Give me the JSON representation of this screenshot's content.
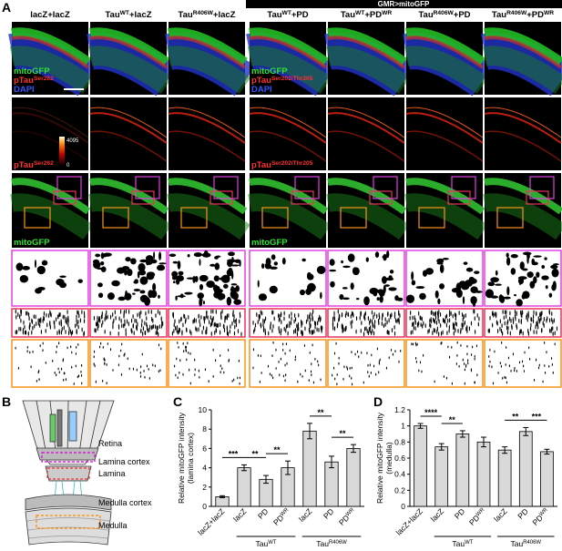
{
  "panel_a": {
    "letter": "A",
    "banner": "GMR>mitoGFP",
    "columns": [
      [
        {
          "text": "lacZ+lacZ"
        }
      ],
      [
        {
          "text": "Tau"
        },
        {
          "text": "WT",
          "sup": true
        },
        {
          "text": "+lacZ"
        }
      ],
      [
        {
          "text": "Tau"
        },
        {
          "text": "R406W",
          "sup": true
        },
        {
          "text": "+lacZ"
        }
      ],
      [
        {
          "text": "Tau"
        },
        {
          "text": "WT",
          "sup": true
        },
        {
          "text": "+PD"
        }
      ],
      [
        {
          "text": "Tau"
        },
        {
          "text": "WT",
          "sup": true
        },
        {
          "text": "+PD"
        },
        {
          "text": "WR",
          "sup": true
        }
      ],
      [
        {
          "text": "Tau"
        },
        {
          "text": "R406W",
          "sup": true
        },
        {
          "text": "+PD"
        }
      ],
      [
        {
          "text": "Tau"
        },
        {
          "text": "R406W",
          "sup": true
        },
        {
          "text": "+PD"
        },
        {
          "text": "WR",
          "sup": true
        }
      ]
    ],
    "overlays": [
      {
        "column": 0,
        "row": 0,
        "lines": [
          {
            "color": "#33e633",
            "text": [
              {
                "text": "mitoGFP"
              }
            ]
          },
          {
            "color": "#ff3030",
            "text": [
              {
                "text": "pTau"
              },
              {
                "text": "Ser262",
                "sup": true
              }
            ]
          },
          {
            "color": "#3355ff",
            "text": [
              {
                "text": "DAPI"
              }
            ]
          }
        ]
      },
      {
        "column": 3,
        "row": 0,
        "lines": [
          {
            "color": "#33e633",
            "text": [
              {
                "text": "mitoGFP"
              }
            ]
          },
          {
            "color": "#ff3030",
            "text": [
              {
                "text": "pTau"
              },
              {
                "text": "Ser202/Thr205",
                "sup": true
              }
            ]
          },
          {
            "color": "#3355ff",
            "text": [
              {
                "text": "DAPI"
              }
            ]
          }
        ]
      },
      {
        "column": 0,
        "row": 1,
        "lines": [
          {
            "color": "#ff3030",
            "text": [
              {
                "text": "pTau"
              },
              {
                "text": "Ser262",
                "sup": true
              }
            ]
          }
        ]
      },
      {
        "column": 3,
        "row": 1,
        "lines": [
          {
            "color": "#ff3030",
            "text": [
              {
                "text": "pTau"
              },
              {
                "text": "Ser202/Thr205",
                "sup": true
              }
            ]
          }
        ]
      },
      {
        "column": 0,
        "row": 2,
        "lines": [
          {
            "color": "#33e633",
            "text": [
              {
                "text": "mitoGFP"
              }
            ]
          }
        ]
      },
      {
        "column": 3,
        "row": 2,
        "lines": [
          {
            "color": "#33e633",
            "text": [
              {
                "text": "mitoGFP"
              }
            ]
          }
        ]
      }
    ],
    "colorbar": {
      "max": 4095,
      "min": 0
    }
  },
  "panel_b": {
    "letter": "B",
    "labels": [
      "Retina",
      "Lamina cortex",
      "Lamina",
      "Medulla cortex",
      "Medulla"
    ]
  },
  "chart_data": [
    {
      "type": "bar",
      "letter": "C",
      "ylabel": [
        "Relative mitoGFP intensity",
        "(lamina cortex)"
      ],
      "categories": [
        "lacZ+lacZ",
        "lacZ",
        "PD",
        [
          {
            "text": "PD"
          },
          {
            "text": "WR",
            "sup": true
          }
        ],
        "lacZ",
        "PD",
        [
          {
            "text": "PD"
          },
          {
            "text": "WR",
            "sup": true
          }
        ]
      ],
      "groups": [
        {
          "label": [
            {
              "text": "Tau"
            },
            {
              "text": "WT",
              "sup": true
            }
          ],
          "from": 1,
          "to": 3
        },
        {
          "label": [
            {
              "text": "Tau"
            },
            {
              "text": "R406W",
              "sup": true
            }
          ],
          "from": 4,
          "to": 6
        }
      ],
      "values": [
        1.0,
        4.0,
        2.8,
        4.0,
        7.8,
        4.6,
        6.0
      ],
      "errors": [
        0.1,
        0.3,
        0.4,
        0.7,
        0.8,
        0.6,
        0.4
      ],
      "color": "#d9d9d9",
      "ylim": [
        0,
        10
      ],
      "yticks": [
        0,
        2,
        4,
        6,
        8,
        10
      ],
      "significance": [
        {
          "from": 0,
          "to": 1,
          "label": "***"
        },
        {
          "from": 1,
          "to": 2,
          "label": "**"
        },
        {
          "from": 2,
          "to": 3,
          "label": "**"
        },
        {
          "from": 4,
          "to": 5,
          "label": "**"
        },
        {
          "from": 5,
          "to": 6,
          "label": "**"
        }
      ]
    },
    {
      "type": "bar",
      "letter": "D",
      "ylabel": [
        "Relative mitoGFP intensity",
        "(medulla)"
      ],
      "categories": [
        "lacZ+lacZ",
        "lacZ",
        "PD",
        [
          {
            "text": "PD"
          },
          {
            "text": "WR",
            "sup": true
          }
        ],
        "lacZ",
        "PD",
        [
          {
            "text": "PD"
          },
          {
            "text": "WR",
            "sup": true
          }
        ]
      ],
      "groups": [
        {
          "label": [
            {
              "text": "Tau"
            },
            {
              "text": "WT",
              "sup": true
            }
          ],
          "from": 1,
          "to": 3
        },
        {
          "label": [
            {
              "text": "Tau"
            },
            {
              "text": "R406W",
              "sup": true
            }
          ],
          "from": 4,
          "to": 6
        }
      ],
      "values": [
        1.0,
        0.74,
        0.9,
        0.8,
        0.7,
        0.93,
        0.68
      ],
      "errors": [
        0.03,
        0.04,
        0.04,
        0.06,
        0.04,
        0.05,
        0.03
      ],
      "color": "#d9d9d9",
      "ylim": [
        0,
        1.2
      ],
      "yticks": [
        0,
        0.2,
        0.4,
        0.6,
        0.8,
        1,
        1.2
      ],
      "significance": [
        {
          "from": 0,
          "to": 1,
          "label": "****"
        },
        {
          "from": 1,
          "to": 2,
          "label": "**"
        },
        {
          "from": 4,
          "to": 5,
          "label": "**"
        },
        {
          "from": 5,
          "to": 6,
          "label": "***"
        }
      ]
    }
  ]
}
